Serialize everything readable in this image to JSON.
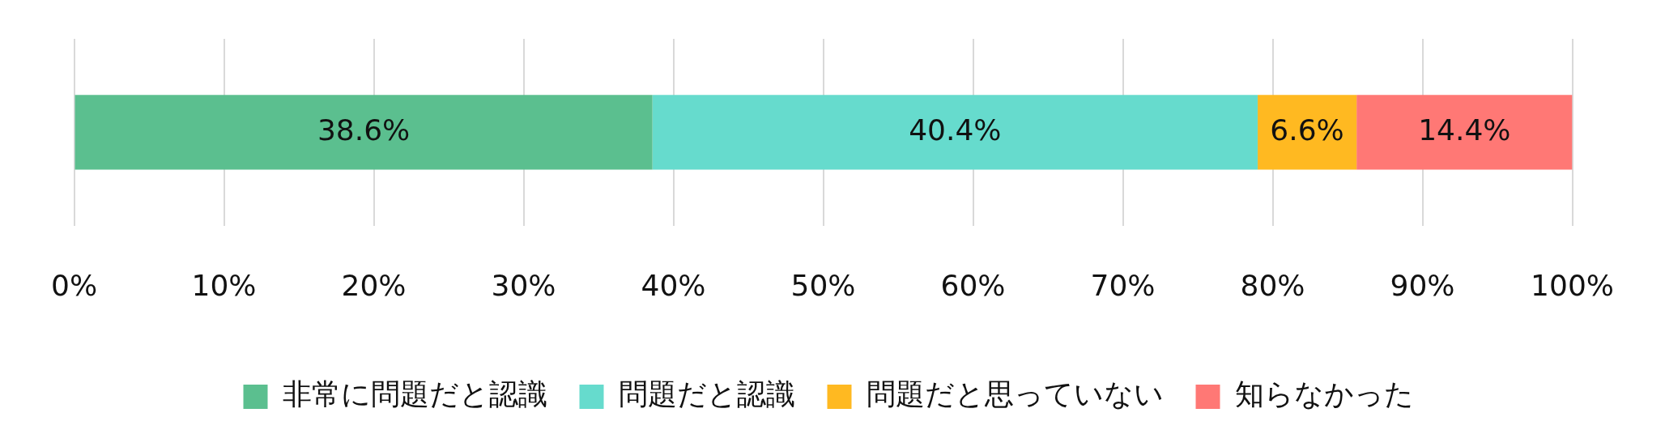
{
  "chart_data": {
    "type": "bar",
    "orientation": "horizontal",
    "stacked": true,
    "categories": [
      null
    ],
    "series": [
      {
        "name": "非常に問題だと認識",
        "color": "#5bbf8f",
        "values": [
          38.6
        ],
        "value_labels": [
          "38.6%"
        ]
      },
      {
        "name": "問題だと認識",
        "color": "#66dbcd",
        "values": [
          40.4
        ],
        "value_labels": [
          "40.4%"
        ]
      },
      {
        "name": "問題だと思っていない",
        "color": "#ffb921",
        "values": [
          6.6
        ],
        "value_labels": [
          "6.6%"
        ]
      },
      {
        "name": "知らなかった",
        "color": "#ff7875",
        "values": [
          14.4
        ],
        "value_labels": [
          "14.4%"
        ]
      }
    ],
    "xlim": [
      0,
      100
    ],
    "xticks": [
      {
        "value": 0,
        "label": "0%"
      },
      {
        "value": 10,
        "label": "10%"
      },
      {
        "value": 20,
        "label": "20%"
      },
      {
        "value": 30,
        "label": "30%"
      },
      {
        "value": 40,
        "label": "40%"
      },
      {
        "value": 50,
        "label": "50%"
      },
      {
        "value": 60,
        "label": "60%"
      },
      {
        "value": 70,
        "label": "70%"
      },
      {
        "value": 80,
        "label": "80%"
      },
      {
        "value": 90,
        "label": "90%"
      },
      {
        "value": 100,
        "label": "100%"
      }
    ],
    "grid": "x",
    "legend": "bottom"
  }
}
